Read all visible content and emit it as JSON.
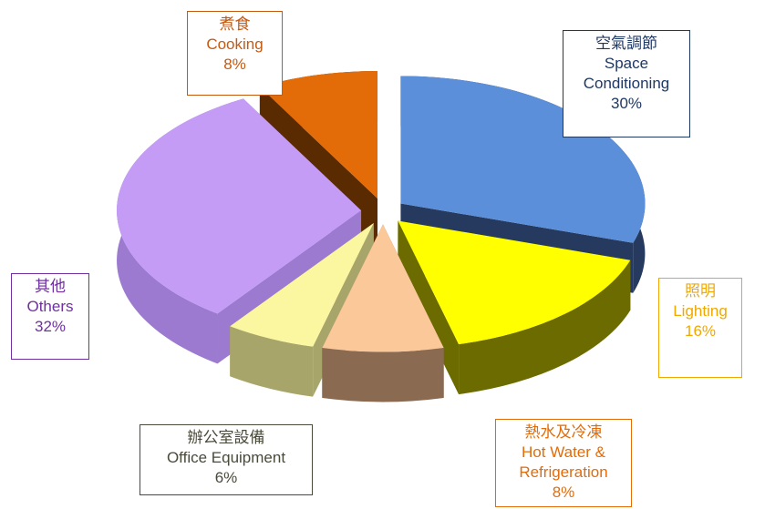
{
  "chart_data": {
    "type": "pie",
    "categories_zh": [
      "空氣調節",
      "照明",
      "熱水及冷凍",
      "辦公室設備",
      "其他",
      "煮食"
    ],
    "categories": [
      "Space Conditioning",
      "Lighting",
      "Hot Water & Refrigeration",
      "Office Equipment",
      "Others",
      "Cooking"
    ],
    "values": [
      30,
      16,
      8,
      6,
      32,
      8
    ],
    "value_labels": [
      "30%",
      "16%",
      "8%",
      "6%",
      "32%",
      "8%"
    ],
    "colors": [
      "#5b8fd9",
      "#ffff00",
      "#fbc89a",
      "#fbf7a0",
      "#c49cf5",
      "#e36c09"
    ],
    "side_colors": [
      "#253a5e",
      "#6b6b00",
      "#8a6a50",
      "#a8a56a",
      "#9b7ad0",
      "#5a2a00"
    ],
    "label_colors": [
      "#1f3864",
      "#f0a800",
      "#e36c09",
      "#4a4a3a",
      "#7030a0",
      "#c55a11"
    ],
    "explode": true
  }
}
